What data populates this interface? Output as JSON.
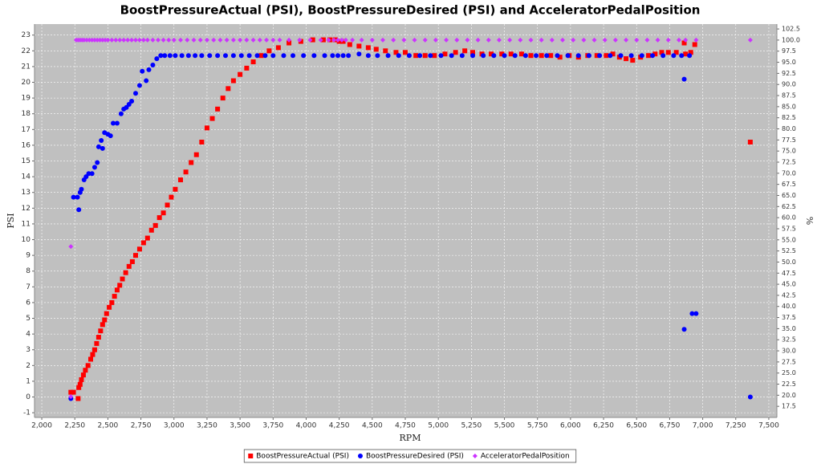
{
  "chart_data": {
    "type": "scatter",
    "title": "BoostPressureActual (PSI), BoostPressureDesired (PSI) and AcceleratorPedalPosition",
    "x_label": "RPM",
    "y_label": "PSI",
    "y2_label": "%",
    "xlim": [
      1945,
      7561
    ],
    "ylim": [
      -1.3,
      23.7
    ],
    "y2lim": [
      15,
      103.6
    ],
    "grid": true,
    "legend": "bottom",
    "xticks": [
      {
        "value": 2000,
        "label": "2,000"
      },
      {
        "value": 2250,
        "label": "2,250"
      },
      {
        "value": 2500,
        "label": "2,500"
      },
      {
        "value": 2750,
        "label": "2,750"
      },
      {
        "value": 3000,
        "label": "3,000"
      },
      {
        "value": 3250,
        "label": "3,250"
      },
      {
        "value": 3500,
        "label": "3,500"
      },
      {
        "value": 3750,
        "label": "3,750"
      },
      {
        "value": 4000,
        "label": "4,000"
      },
      {
        "value": 4250,
        "label": "4,250"
      },
      {
        "value": 4500,
        "label": "4,500"
      },
      {
        "value": 4750,
        "label": "4,750"
      },
      {
        "value": 5000,
        "label": "5,000"
      },
      {
        "value": 5250,
        "label": "5,250"
      },
      {
        "value": 5500,
        "label": "5,500"
      },
      {
        "value": 5750,
        "label": "5,750"
      },
      {
        "value": 6000,
        "label": "6,000"
      },
      {
        "value": 6250,
        "label": "6,250"
      },
      {
        "value": 6500,
        "label": "6,500"
      },
      {
        "value": 6750,
        "label": "6,750"
      },
      {
        "value": 7000,
        "label": "7,000"
      },
      {
        "value": 7250,
        "label": "7,250"
      },
      {
        "value": 7500,
        "label": "7,500"
      }
    ],
    "yticks": [
      -1,
      0,
      1,
      2,
      3,
      4,
      5,
      6,
      7,
      8,
      9,
      10,
      11,
      12,
      13,
      14,
      15,
      16,
      17,
      18,
      19,
      20,
      21,
      22,
      23
    ],
    "y2ticks": [
      {
        "value": 17.5,
        "label": "17.5"
      },
      {
        "value": 20,
        "label": "20.0"
      },
      {
        "value": 22.5,
        "label": "22.5"
      },
      {
        "value": 25,
        "label": "25.0"
      },
      {
        "value": 27.5,
        "label": "27.5"
      },
      {
        "value": 30,
        "label": "30.0"
      },
      {
        "value": 32.5,
        "label": "32.5"
      },
      {
        "value": 35,
        "label": "35.0"
      },
      {
        "value": 37.5,
        "label": "37.5"
      },
      {
        "value": 40,
        "label": "40.0"
      },
      {
        "value": 42.5,
        "label": "42.5"
      },
      {
        "value": 45,
        "label": "45.0"
      },
      {
        "value": 47.5,
        "label": "47.5"
      },
      {
        "value": 50,
        "label": "50.0"
      },
      {
        "value": 52.5,
        "label": "52.5"
      },
      {
        "value": 55,
        "label": "55.0"
      },
      {
        "value": 57.5,
        "label": "57.5"
      },
      {
        "value": 60,
        "label": "60.0"
      },
      {
        "value": 62.5,
        "label": "62.5"
      },
      {
        "value": 65,
        "label": "65.0"
      },
      {
        "value": 67.5,
        "label": "67.5"
      },
      {
        "value": 70,
        "label": "70.0"
      },
      {
        "value": 72.5,
        "label": "72.5"
      },
      {
        "value": 75,
        "label": "75.0"
      },
      {
        "value": 77.5,
        "label": "77.5"
      },
      {
        "value": 80,
        "label": "80.0"
      },
      {
        "value": 82.5,
        "label": "82.5"
      },
      {
        "value": 85,
        "label": "85.0"
      },
      {
        "value": 87.5,
        "label": "87.5"
      },
      {
        "value": 90,
        "label": "90.0"
      },
      {
        "value": 92.5,
        "label": "92.5"
      },
      {
        "value": 95,
        "label": "95.0"
      },
      {
        "value": 97.5,
        "label": "97.5"
      },
      {
        "value": 100,
        "label": "100.0"
      },
      {
        "value": 102.5,
        "label": "102.5"
      }
    ],
    "series": [
      {
        "name": "BoostPressureActual (PSI)",
        "color": "#ff0000",
        "marker": "square",
        "x": [
          2220,
          2240,
          2275,
          2280,
          2290,
          2300,
          2315,
          2330,
          2350,
          2370,
          2385,
          2400,
          2415,
          2430,
          2445,
          2460,
          2475,
          2490,
          2510,
          2530,
          2550,
          2570,
          2590,
          2610,
          2635,
          2660,
          2685,
          2710,
          2740,
          2770,
          2800,
          2830,
          2860,
          2890,
          2920,
          2950,
          2980,
          3010,
          3050,
          3090,
          3130,
          3170,
          3210,
          3250,
          3290,
          3330,
          3370,
          3410,
          3450,
          3500,
          3550,
          3600,
          3660,
          3720,
          3790,
          3870,
          3960,
          4050,
          4130,
          4180,
          4220,
          4250,
          4280,
          4330,
          4400,
          4470,
          4530,
          4600,
          4680,
          4750,
          4830,
          4900,
          4970,
          5050,
          5130,
          5200,
          5260,
          5330,
          5400,
          5480,
          5550,
          5630,
          5700,
          5780,
          5850,
          5920,
          5990,
          6060,
          6130,
          6200,
          6270,
          6320,
          6370,
          6420,
          6470,
          6530,
          6590,
          6640,
          6690,
          6740,
          6800,
          6860,
          6870,
          6910,
          6940,
          7360
        ],
        "values": [
          0.3,
          0.3,
          -0.1,
          0.6,
          0.8,
          1.1,
          1.4,
          1.7,
          2.0,
          2.4,
          2.7,
          3.0,
          3.4,
          3.8,
          4.2,
          4.6,
          4.9,
          5.3,
          5.7,
          6.0,
          6.4,
          6.8,
          7.1,
          7.5,
          7.9,
          8.3,
          8.6,
          9.0,
          9.4,
          9.8,
          10.1,
          10.6,
          10.9,
          11.4,
          11.7,
          12.2,
          12.7,
          13.2,
          13.8,
          14.3,
          14.9,
          15.4,
          16.2,
          17.1,
          17.7,
          18.3,
          19.0,
          19.6,
          20.1,
          20.5,
          20.9,
          21.3,
          21.7,
          22.0,
          22.2,
          22.5,
          22.6,
          22.7,
          22.7,
          22.7,
          22.7,
          22.6,
          22.6,
          22.4,
          22.3,
          22.2,
          22.1,
          22.0,
          21.9,
          21.9,
          21.7,
          21.7,
          21.7,
          21.8,
          21.9,
          22.0,
          21.9,
          21.8,
          21.8,
          21.8,
          21.8,
          21.8,
          21.7,
          21.7,
          21.7,
          21.6,
          21.7,
          21.6,
          21.7,
          21.7,
          21.7,
          21.8,
          21.6,
          21.5,
          21.4,
          21.6,
          21.7,
          21.8,
          21.9,
          21.9,
          21.9,
          22.5,
          21.8,
          21.9,
          22.4,
          16.2
        ]
      },
      {
        "name": "BoostPressureDesired (PSI)",
        "color": "#0000ff",
        "marker": "circle",
        "x": [
          2220,
          2240,
          2270,
          2280,
          2290,
          2300,
          2320,
          2335,
          2355,
          2380,
          2400,
          2420,
          2430,
          2450,
          2460,
          2475,
          2500,
          2520,
          2540,
          2570,
          2600,
          2620,
          2640,
          2660,
          2680,
          2710,
          2740,
          2760,
          2790,
          2810,
          2840,
          2870,
          2900,
          2930,
          2970,
          3010,
          3060,
          3110,
          3160,
          3210,
          3270,
          3330,
          3390,
          3450,
          3510,
          3570,
          3630,
          3690,
          3750,
          3830,
          3900,
          3980,
          4060,
          4140,
          4200,
          4240,
          4280,
          4320,
          4400,
          4470,
          4540,
          4620,
          4700,
          4780,
          4860,
          4940,
          5020,
          5100,
          5180,
          5260,
          5340,
          5420,
          5500,
          5580,
          5660,
          5740,
          5820,
          5900,
          5980,
          6060,
          6140,
          6220,
          6300,
          6380,
          6460,
          6540,
          6620,
          6700,
          6780,
          6840,
          6900,
          6860,
          6860,
          6920,
          6950,
          7360
        ],
        "values": [
          -0.1,
          12.7,
          12.7,
          11.9,
          13.0,
          13.2,
          13.8,
          14.0,
          14.2,
          14.2,
          14.6,
          14.9,
          15.9,
          16.3,
          15.8,
          16.8,
          16.7,
          16.6,
          17.4,
          17.4,
          18.0,
          18.3,
          18.4,
          18.6,
          18.8,
          19.3,
          19.8,
          20.7,
          20.1,
          20.8,
          21.1,
          21.5,
          21.7,
          21.7,
          21.7,
          21.7,
          21.7,
          21.7,
          21.7,
          21.7,
          21.7,
          21.7,
          21.7,
          21.7,
          21.7,
          21.7,
          21.7,
          21.7,
          21.7,
          21.7,
          21.7,
          21.7,
          21.7,
          21.7,
          21.7,
          21.7,
          21.7,
          21.7,
          21.8,
          21.7,
          21.7,
          21.7,
          21.7,
          21.7,
          21.7,
          21.7,
          21.7,
          21.7,
          21.7,
          21.7,
          21.7,
          21.7,
          21.7,
          21.7,
          21.7,
          21.7,
          21.7,
          21.7,
          21.7,
          21.7,
          21.7,
          21.7,
          21.7,
          21.7,
          21.7,
          21.7,
          21.7,
          21.7,
          21.7,
          21.7,
          21.7,
          20.2,
          4.3,
          5.3,
          5.3,
          0.0
        ]
      },
      {
        "name": "AcceleratorPedalPosition",
        "color": "#cc33ff",
        "marker": "diamond",
        "axis": "y2",
        "x": [
          2220,
          2220,
          2260,
          2275,
          2290,
          2305,
          2320,
          2340,
          2360,
          2380,
          2400,
          2420,
          2440,
          2460,
          2480,
          2500,
          2530,
          2560,
          2590,
          2620,
          2650,
          2680,
          2710,
          2740,
          2770,
          2800,
          2840,
          2880,
          2920,
          2960,
          3000,
          3050,
          3100,
          3150,
          3200,
          3250,
          3300,
          3350,
          3400,
          3450,
          3500,
          3550,
          3600,
          3650,
          3700,
          3750,
          3800,
          3870,
          3950,
          4030,
          4110,
          4170,
          4210,
          4240,
          4270,
          4300,
          4350,
          4420,
          4500,
          4580,
          4660,
          4740,
          4820,
          4900,
          4980,
          5060,
          5140,
          5220,
          5300,
          5380,
          5460,
          5540,
          5620,
          5700,
          5780,
          5860,
          5940,
          6020,
          6100,
          6180,
          6260,
          6340,
          6420,
          6500,
          6580,
          6660,
          6740,
          6820,
          6870,
          6950,
          7360
        ],
        "values": [
          53.5,
          19.7,
          100,
          100,
          100,
          100,
          100,
          100,
          100,
          100,
          100,
          100,
          100,
          100,
          100,
          100,
          100,
          100,
          100,
          100,
          100,
          100,
          100,
          100,
          100,
          100,
          100,
          100,
          100,
          100,
          100,
          100,
          100,
          100,
          100,
          100,
          100,
          100,
          100,
          100,
          100,
          100,
          100,
          100,
          100,
          100,
          100,
          100,
          100,
          100,
          100,
          100,
          100,
          100,
          100,
          100,
          100,
          100,
          100,
          100,
          100,
          100,
          100,
          100,
          100,
          100,
          100,
          100,
          100,
          100,
          100,
          100,
          100,
          100,
          100,
          100,
          100,
          100,
          100,
          100,
          100,
          100,
          100,
          100,
          100,
          100,
          100,
          100,
          100,
          100,
          100
        ]
      }
    ]
  }
}
